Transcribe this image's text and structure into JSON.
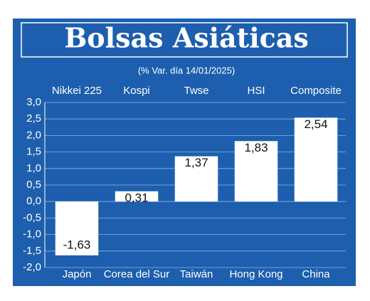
{
  "chart_data": {
    "type": "bar",
    "title": "Bolsas Asiáticas",
    "subtitle": "(% Var. día 14/01/2025)",
    "indices": [
      "Nikkei 225",
      "Kospi",
      "Twse",
      "HSI",
      "Composite"
    ],
    "categories": [
      "Japón",
      "Corea del Sur",
      "Taiwán",
      "Hong Kong",
      "China"
    ],
    "values": [
      -1.63,
      0.31,
      1.37,
      1.83,
      2.54
    ],
    "value_labels": [
      "-1,63",
      "0,31",
      "1,37",
      "1,83",
      "2,54"
    ],
    "color": "#ffffff",
    "ylim": [
      -2,
      3
    ],
    "yticks": [
      {
        "value": -2,
        "label": "-2,0"
      },
      {
        "value": -1.5,
        "label": "-1,5"
      },
      {
        "value": -1,
        "label": "-1,0"
      },
      {
        "value": -0.5,
        "label": "-0,5"
      },
      {
        "value": 0,
        "label": "0,0"
      },
      {
        "value": 0.5,
        "label": "0,5"
      },
      {
        "value": 1,
        "label": "1,0"
      },
      {
        "value": 1.5,
        "label": "1,5"
      },
      {
        "value": 2,
        "label": "2,0"
      },
      {
        "value": 2.5,
        "label": "2,5"
      },
      {
        "value": 3,
        "label": "3,0"
      }
    ],
    "grid": true
  }
}
